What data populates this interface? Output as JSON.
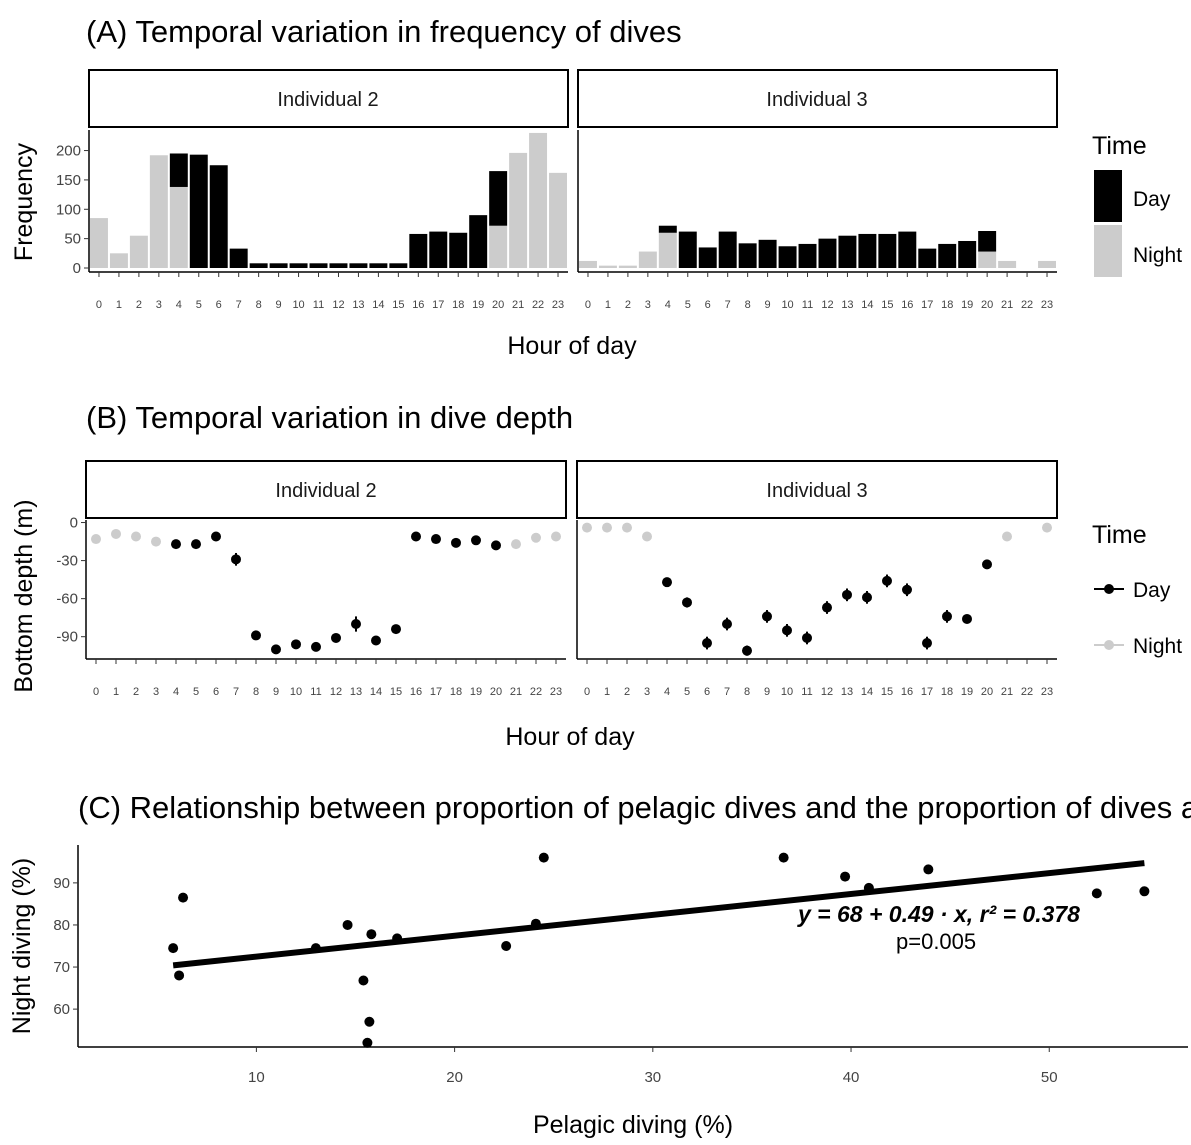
{
  "chart_data": [
    {
      "type": "bar",
      "title": "(A) Temporal variation in frequency of dives",
      "xlabel": "Hour of day",
      "ylabel": "Frequency",
      "ylim": [
        0,
        235
      ],
      "yticks": [
        0,
        50,
        100,
        150,
        200
      ],
      "categories": [
        "0",
        "1",
        "2",
        "3",
        "4",
        "5",
        "6",
        "7",
        "8",
        "9",
        "10",
        "11",
        "12",
        "13",
        "14",
        "15",
        "16",
        "17",
        "18",
        "19",
        "20",
        "21",
        "22",
        "23"
      ],
      "legend": {
        "title": "Time",
        "entries": [
          "Day",
          "Night"
        ],
        "placement": "right"
      },
      "colors": {
        "Day": "#000000",
        "Night": "#cccccc"
      },
      "stacking": "stacked",
      "facets": [
        {
          "label": "Individual 2",
          "series": [
            {
              "name": "Day",
              "values": [
                0,
                0,
                0,
                0,
                57,
                193,
                175,
                33,
                8,
                8,
                8,
                8,
                8,
                8,
                8,
                8,
                58,
                62,
                60,
                90,
                93,
                0,
                0,
                0
              ]
            },
            {
              "name": "Night",
              "values": [
                85,
                25,
                55,
                192,
                138,
                0,
                0,
                0,
                0,
                0,
                0,
                0,
                0,
                0,
                0,
                0,
                0,
                0,
                0,
                0,
                72,
                196,
                230,
                162
              ]
            }
          ]
        },
        {
          "label": "Individual 3",
          "series": [
            {
              "name": "Day",
              "values": [
                0,
                0,
                0,
                0,
                12,
                62,
                35,
                62,
                42,
                48,
                37,
                41,
                50,
                55,
                58,
                58,
                62,
                33,
                41,
                46,
                35,
                0,
                0,
                0
              ]
            },
            {
              "name": "Night",
              "values": [
                12,
                4,
                4,
                28,
                60,
                0,
                0,
                0,
                0,
                0,
                0,
                0,
                0,
                0,
                0,
                0,
                0,
                0,
                0,
                0,
                28,
                12,
                0,
                12
              ]
            }
          ]
        }
      ]
    },
    {
      "type": "scatter",
      "title": "(B) Temporal variation in dive depth",
      "xlabel": "Hour of day",
      "ylabel": "Bottom depth (m)",
      "ylim": [
        -106,
        2
      ],
      "yticks": [
        0,
        -30,
        -60,
        -90
      ],
      "categories": [
        "0",
        "1",
        "2",
        "3",
        "4",
        "5",
        "6",
        "7",
        "8",
        "9",
        "10",
        "11",
        "12",
        "13",
        "14",
        "15",
        "16",
        "17",
        "18",
        "19",
        "20",
        "21",
        "22",
        "23"
      ],
      "legend": {
        "title": "Time",
        "entries": [
          "Day",
          "Night"
        ],
        "placement": "right"
      },
      "colors": {
        "Day": "#000000",
        "Night": "#cccccc"
      },
      "facets": [
        {
          "label": "Individual 2",
          "points": [
            [
              0,
              -13,
              "Night",
              2
            ],
            [
              1,
              -9,
              "Night",
              2
            ],
            [
              2,
              -11,
              "Night",
              2
            ],
            [
              3,
              -15,
              "Night",
              2
            ],
            [
              4,
              -17,
              "Day",
              2
            ],
            [
              5,
              -17,
              "Day",
              2
            ],
            [
              6,
              -11,
              "Day",
              2
            ],
            [
              7,
              -29,
              "Day",
              5
            ],
            [
              8,
              -89,
              "Day",
              2
            ],
            [
              9,
              -100,
              "Day",
              2
            ],
            [
              10,
              -96,
              "Day",
              2
            ],
            [
              11,
              -98,
              "Day",
              2
            ],
            [
              12,
              -91,
              "Day",
              2
            ],
            [
              13,
              -80,
              "Day",
              6
            ],
            [
              14,
              -93,
              "Day",
              2
            ],
            [
              15,
              -84,
              "Day",
              2
            ],
            [
              16,
              -11,
              "Day",
              2
            ],
            [
              17,
              -13,
              "Day",
              2
            ],
            [
              18,
              -16,
              "Day",
              2
            ],
            [
              19,
              -14,
              "Day",
              2
            ],
            [
              20,
              -18,
              "Day",
              2
            ],
            [
              21,
              -17,
              "Night",
              2
            ],
            [
              22,
              -12,
              "Night",
              2
            ],
            [
              23,
              -11,
              "Night",
              2
            ]
          ]
        },
        {
          "label": "Individual 3",
          "points": [
            [
              0,
              -4,
              "Night",
              1
            ],
            [
              1,
              -4,
              "Night",
              1
            ],
            [
              2,
              -4,
              "Night",
              1
            ],
            [
              3,
              -11,
              "Night",
              1
            ],
            [
              4,
              -47,
              "Day",
              3
            ],
            [
              5,
              -63,
              "Day",
              4
            ],
            [
              6,
              -95,
              "Day",
              5
            ],
            [
              7,
              -80,
              "Day",
              5
            ],
            [
              8,
              -101,
              "Day",
              4
            ],
            [
              9,
              -74,
              "Day",
              5
            ],
            [
              10,
              -85,
              "Day",
              5
            ],
            [
              11,
              -91,
              "Day",
              5
            ],
            [
              12,
              -67,
              "Day",
              5
            ],
            [
              13,
              -57,
              "Day",
              5
            ],
            [
              14,
              -59,
              "Day",
              5
            ],
            [
              15,
              -46,
              "Day",
              5
            ],
            [
              16,
              -53,
              "Day",
              5
            ],
            [
              17,
              -95,
              "Day",
              5
            ],
            [
              18,
              -74,
              "Day",
              5
            ],
            [
              19,
              -76,
              "Day",
              3
            ],
            [
              20,
              -33,
              "Day",
              3
            ],
            [
              21,
              -11,
              "Night",
              1
            ],
            [
              23,
              -4,
              "Night",
              1
            ]
          ]
        }
      ]
    },
    {
      "type": "scatter",
      "title": "(C) Relationship between proportion of pelagic dives and the proportion of dives at night",
      "xlabel": "Pelagic diving (%)",
      "ylabel": "Night diving (%)",
      "xlim": [
        1,
        57
      ],
      "ylim": [
        51,
        99
      ],
      "xticks": [
        10,
        20,
        30,
        40,
        50
      ],
      "yticks": [
        60,
        70,
        80,
        90
      ],
      "points": [
        [
          5.8,
          74.5
        ],
        [
          6.1,
          68
        ],
        [
          6.3,
          86.5
        ],
        [
          13,
          74.5
        ],
        [
          14.6,
          80
        ],
        [
          15.4,
          66.8
        ],
        [
          15.6,
          52
        ],
        [
          15.7,
          57
        ],
        [
          15.8,
          77.8
        ],
        [
          17.1,
          76.8
        ],
        [
          22.6,
          75
        ],
        [
          24.1,
          80.3
        ],
        [
          24.5,
          96
        ],
        [
          36.6,
          96
        ],
        [
          39.7,
          91.5
        ],
        [
          40.9,
          88.8
        ],
        [
          43.9,
          93.2
        ],
        [
          52.4,
          87.5
        ],
        [
          54.8,
          88
        ]
      ],
      "fit": {
        "x": [
          5.8,
          54.8
        ],
        "y": [
          70.4,
          94.7
        ]
      },
      "annotation": {
        "equation": "y = 68 + 0.49 · x,  r² = 0.378",
        "p": "p=0.005"
      }
    }
  ]
}
